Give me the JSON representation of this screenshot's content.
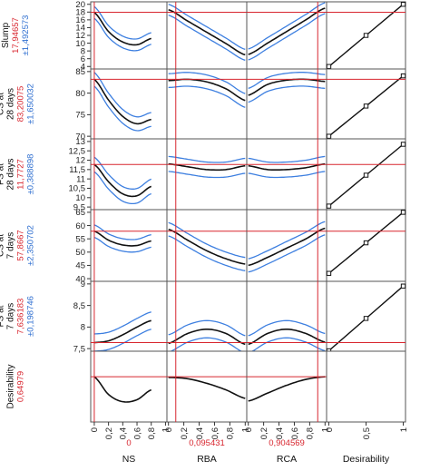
{
  "chart_data": {
    "type": "line",
    "description_hidden": false,
    "factors": [
      {
        "name": "NS",
        "current": "0",
        "current_x": 0,
        "range": [
          0,
          0.8
        ],
        "ticks": [
          "0",
          "0,2",
          "0,4",
          "0,6",
          "0,8",
          "1"
        ]
      },
      {
        "name": "RBA",
        "current": "0,095431",
        "current_x": 0.095431,
        "range": [
          0,
          1
        ],
        "ticks": [
          "0",
          "0,2",
          "0,4",
          "0,6",
          "0,8",
          "1"
        ]
      },
      {
        "name": "RCA",
        "current": "0,904569",
        "current_x": 0.904569,
        "range": [
          0,
          1
        ],
        "ticks": [
          "0",
          "0,2",
          "0,4",
          "0,6",
          "0,8",
          "1"
        ]
      },
      {
        "name": "Desirability",
        "current": "",
        "current_x": null,
        "range": [
          0,
          1
        ],
        "ticks": [
          "0",
          "0,5",
          "1"
        ]
      }
    ],
    "responses": [
      {
        "label_lines": [
          "Slump"
        ],
        "value": "17,94657",
        "ci": "±1,492573",
        "ylim": [
          4,
          20
        ],
        "yticks": [
          "4",
          "6",
          "8",
          "10",
          "12",
          "14",
          "16",
          "18",
          "20"
        ],
        "current_y": 17.95,
        "desirability_y": [
          4,
          12,
          20
        ],
        "profiles": [
          {
            "x": [
              0,
              0.2,
              0.4,
              0.6,
              0.8
            ],
            "y": [
              17.9,
              13.0,
              10.3,
              9.6,
              11.2
            ],
            "ci": 1.5
          },
          {
            "x": [
              0,
              0.25,
              0.5,
              0.75,
              1
            ],
            "y": [
              18.6,
              15.7,
              12.8,
              9.9,
              7.0
            ],
            "ci": 1.4
          },
          {
            "x": [
              0,
              0.25,
              0.5,
              0.75,
              1
            ],
            "y": [
              7.1,
              10.0,
              13.0,
              16.0,
              19.0
            ],
            "ci": 1.4
          }
        ]
      },
      {
        "label_lines": [
          "CS at",
          "28 days"
        ],
        "value": "83,20075",
        "ci": "±1,650032",
        "ylim": [
          70,
          85
        ],
        "yticks": [
          "70",
          "75",
          "80",
          "85"
        ],
        "current_y": 83.2,
        "desirability_y": [
          70,
          77,
          84
        ],
        "profiles": [
          {
            "x": [
              0,
              0.2,
              0.4,
              0.6,
              0.8
            ],
            "y": [
              83.2,
              78.4,
              74.6,
              72.9,
              73.9
            ],
            "ci": 1.6
          },
          {
            "x": [
              0,
              0.25,
              0.5,
              0.75,
              1
            ],
            "y": [
              82.9,
              83.2,
              82.6,
              81.0,
              78.3
            ],
            "ci": 1.6
          },
          {
            "x": [
              0,
              0.25,
              0.5,
              0.75,
              1
            ],
            "y": [
              79.5,
              82.0,
              83.0,
              83.2,
              82.7
            ],
            "ci": 1.6
          }
        ]
      },
      {
        "label_lines": [
          "FS at",
          "28 days"
        ],
        "value": "11,7727",
        "ci": "±0,388898",
        "ylim": [
          9.5,
          13
        ],
        "yticks": [
          "9,5",
          "10",
          "10,5",
          "11",
          "11,5",
          "12",
          "12,5",
          "13"
        ],
        "current_y": 11.77,
        "desirability_y": [
          9.55,
          11.2,
          12.85
        ],
        "profiles": [
          {
            "x": [
              0,
              0.2,
              0.4,
              0.6,
              0.8
            ],
            "y": [
              11.77,
              10.85,
              10.2,
              10.1,
              10.6
            ],
            "ci": 0.39
          },
          {
            "x": [
              0,
              0.25,
              0.5,
              0.75,
              1
            ],
            "y": [
              11.8,
              11.65,
              11.5,
              11.5,
              11.7
            ],
            "ci": 0.4
          },
          {
            "x": [
              0,
              0.25,
              0.5,
              0.75,
              1
            ],
            "y": [
              11.7,
              11.5,
              11.5,
              11.6,
              11.8
            ],
            "ci": 0.4
          }
        ]
      },
      {
        "label_lines": [
          "CS at",
          "7 days"
        ],
        "value": "57,8667",
        "ci": "±2,350702",
        "ylim": [
          40,
          65
        ],
        "yticks": [
          "40",
          "45",
          "50",
          "55",
          "60",
          "65"
        ],
        "current_y": 57.87,
        "desirability_y": [
          42,
          53.5,
          65
        ],
        "profiles": [
          {
            "x": [
              0,
              0.2,
              0.4,
              0.6,
              0.8
            ],
            "y": [
              57.9,
              54.5,
              52.7,
              52.5,
              54.2
            ],
            "ci": 2.35
          },
          {
            "x": [
              0,
              0.25,
              0.5,
              0.75,
              1
            ],
            "y": [
              58.6,
              54.5,
              50.5,
              47.5,
              45.5
            ],
            "ci": 2.5
          },
          {
            "x": [
              0,
              0.25,
              0.5,
              0.75,
              1
            ],
            "y": [
              45.0,
              48.0,
              51.5,
              55.0,
              59.0
            ],
            "ci": 2.5
          }
        ]
      },
      {
        "label_lines": [
          "FS at",
          "7 days"
        ],
        "value": "7,636183",
        "ci": "±0,198746",
        "ylim": [
          7.5,
          9
        ],
        "yticks": [
          "7,5",
          "8",
          "8,5",
          "9"
        ],
        "current_y": 7.64,
        "desirability_y": [
          7.45,
          8.2,
          8.95
        ],
        "profiles": [
          {
            "x": [
              0,
              0.2,
              0.4,
              0.6,
              0.8
            ],
            "y": [
              7.64,
              7.68,
              7.82,
              8.0,
              8.15
            ],
            "ci": 0.2
          },
          {
            "x": [
              0,
              0.25,
              0.5,
              0.75,
              1
            ],
            "y": [
              7.62,
              7.85,
              7.95,
              7.85,
              7.6
            ],
            "ci": 0.2
          },
          {
            "x": [
              0,
              0.25,
              0.5,
              0.75,
              1
            ],
            "y": [
              7.6,
              7.85,
              7.95,
              7.85,
              7.65
            ],
            "ci": 0.2
          }
        ]
      },
      {
        "label_lines": [
          "Desirability"
        ],
        "value": "0,64979",
        "ci": "",
        "ylim": [
          0,
          1
        ],
        "yticks": [],
        "current_y": 0.65,
        "desirability_y": null,
        "profiles": [
          {
            "x": [
              0,
              0.2,
              0.4,
              0.6,
              0.8
            ],
            "y": [
              0.65,
              0.38,
              0.27,
              0.3,
              0.45
            ],
            "ci": 0
          },
          {
            "x": [
              0,
              0.25,
              0.5,
              0.75,
              1
            ],
            "y": [
              0.64,
              0.62,
              0.55,
              0.45,
              0.32
            ],
            "ci": 0
          },
          {
            "x": [
              0,
              0.25,
              0.5,
              0.75,
              1
            ],
            "y": [
              0.28,
              0.4,
              0.52,
              0.61,
              0.65
            ],
            "ci": 0
          }
        ]
      }
    ]
  }
}
